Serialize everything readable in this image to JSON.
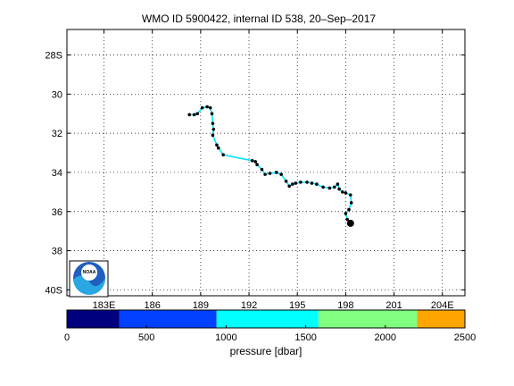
{
  "chart_data": {
    "type": "scatter",
    "title": "WMO ID 5900422, internal ID 538, 20–Sep–2017",
    "x_ticks": [
      {
        "value": 183,
        "label": "183E"
      },
      {
        "value": 186,
        "label": "186"
      },
      {
        "value": 189,
        "label": "189"
      },
      {
        "value": 192,
        "label": "192"
      },
      {
        "value": 195,
        "label": "195"
      },
      {
        "value": 198,
        "label": "198"
      },
      {
        "value": 201,
        "label": "201"
      },
      {
        "value": 204,
        "label": "204E"
      }
    ],
    "y_ticks": [
      {
        "value": 28,
        "label": "28S"
      },
      {
        "value": 30,
        "label": "30"
      },
      {
        "value": 32,
        "label": "32"
      },
      {
        "value": 34,
        "label": "34"
      },
      {
        "value": 36,
        "label": "36"
      },
      {
        "value": 38,
        "label": "38"
      },
      {
        "value": 40,
        "label": "40S"
      }
    ],
    "xlim": [
      180.7,
      205.4
    ],
    "ylim": [
      26.7,
      40.3
    ],
    "grid": true,
    "logo_text": "NOAA",
    "track": [
      [
        188.3,
        31.05
      ],
      [
        188.6,
        31.05
      ],
      [
        188.8,
        31.0
      ],
      [
        189.1,
        30.7
      ],
      [
        189.4,
        30.65
      ],
      [
        189.6,
        30.7
      ],
      [
        189.7,
        31.0
      ],
      [
        189.75,
        31.5
      ],
      [
        189.8,
        31.8
      ],
      [
        189.75,
        32.1
      ],
      [
        190.0,
        32.6
      ],
      [
        190.1,
        32.75
      ],
      [
        190.4,
        33.1
      ],
      [
        192.2,
        33.4
      ],
      [
        192.4,
        33.45
      ],
      [
        192.5,
        33.6
      ],
      [
        192.8,
        33.85
      ],
      [
        193.0,
        34.1
      ],
      [
        193.3,
        34.05
      ],
      [
        193.7,
        34.0
      ],
      [
        194.0,
        34.1
      ],
      [
        194.3,
        34.45
      ],
      [
        194.5,
        34.7
      ],
      [
        194.7,
        34.6
      ],
      [
        194.9,
        34.55
      ],
      [
        195.2,
        34.5
      ],
      [
        195.6,
        34.5
      ],
      [
        195.9,
        34.55
      ],
      [
        196.2,
        34.6
      ],
      [
        196.6,
        34.75
      ],
      [
        197.0,
        34.8
      ],
      [
        197.3,
        34.75
      ],
      [
        197.5,
        34.6
      ],
      [
        197.6,
        34.85
      ],
      [
        197.8,
        35.0
      ],
      [
        198.0,
        35.05
      ],
      [
        198.3,
        35.15
      ],
      [
        198.35,
        35.55
      ],
      [
        198.2,
        35.9
      ],
      [
        198.0,
        36.1
      ],
      [
        198.1,
        36.4
      ],
      [
        198.3,
        36.6
      ]
    ],
    "colorbar": {
      "label": "pressure [dbar]",
      "ticks": [
        {
          "value": 0,
          "label": "0"
        },
        {
          "value": 500,
          "label": "500"
        },
        {
          "value": 1000,
          "label": "1000"
        },
        {
          "value": 1500,
          "label": "1500"
        },
        {
          "value": 2000,
          "label": "2000"
        },
        {
          "value": 2500,
          "label": "2500"
        }
      ],
      "range": [
        0,
        2500
      ],
      "bands": [
        {
          "from": 0,
          "to": 330,
          "color": "#00007f"
        },
        {
          "from": 330,
          "to": 940,
          "color": "#0040ff"
        },
        {
          "from": 940,
          "to": 1580,
          "color": "#00ffff"
        },
        {
          "from": 1580,
          "to": 2200,
          "color": "#80ff80"
        },
        {
          "from": 2200,
          "to": 2500,
          "color": "#ffa500"
        }
      ]
    }
  }
}
